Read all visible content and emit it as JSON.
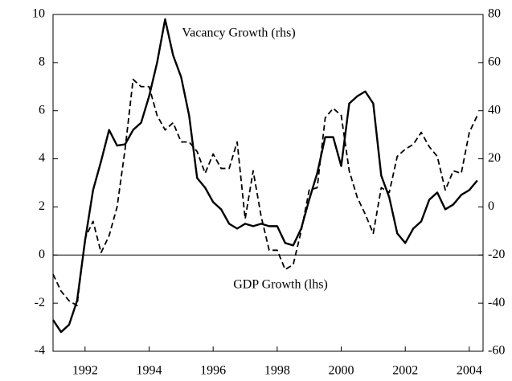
{
  "chart_data": {
    "type": "line",
    "annotations": [
      "Vacancy Growth (rhs)",
      "GDP Growth (lhs)"
    ],
    "x": [
      1991,
      1991.25,
      1991.5,
      1991.75,
      1992,
      1992.25,
      1992.5,
      1992.75,
      1993,
      1993.25,
      1993.5,
      1993.75,
      1994,
      1994.25,
      1994.5,
      1994.75,
      1995,
      1995.25,
      1995.5,
      1995.75,
      1996,
      1996.25,
      1996.5,
      1996.75,
      1997,
      1997.25,
      1997.5,
      1997.75,
      1998,
      1998.25,
      1998.5,
      1998.75,
      1999,
      1999.25,
      1999.5,
      1999.75,
      2000,
      2000.25,
      2000.5,
      2000.75,
      2001,
      2001.25,
      2001.5,
      2001.75,
      2002,
      2002.25,
      2002.5,
      2002.75,
      2003,
      2003.25,
      2003.5,
      2003.75,
      2004,
      2004.25
    ],
    "series": [
      {
        "name": "Vacancy Growth (rhs)",
        "color": "#000000",
        "dash": false,
        "axis": "y2",
        "values": [
          -47,
          -52,
          -49,
          -39,
          -14,
          7,
          19,
          32,
          25.5,
          26,
          32,
          35,
          46,
          60,
          78,
          63,
          54,
          38,
          12,
          8,
          2,
          -1,
          -7,
          -9,
          -7,
          -8,
          -7,
          -8,
          -8,
          -15,
          -16,
          -9,
          3,
          14,
          29,
          29,
          17,
          43,
          46,
          48,
          43,
          13,
          4,
          -11,
          -15,
          -9,
          -6,
          3,
          6,
          -1,
          1,
          5,
          7,
          11
        ]
      },
      {
        "name": "GDP Growth (lhs)",
        "color": "#000000",
        "dash": true,
        "axis": "y",
        "values": [
          -0.8,
          -1.5,
          -1.9,
          -2.1,
          0.7,
          1.4,
          0.1,
          0.8,
          2.0,
          4.4,
          7.3,
          7.0,
          7.0,
          5.8,
          5.2,
          5.5,
          4.7,
          4.7,
          4.3,
          3.4,
          4.2,
          3.6,
          3.6,
          4.7,
          1.5,
          3.5,
          1.6,
          0.2,
          0.2,
          -0.6,
          -0.4,
          1.0,
          2.7,
          2.8,
          5.7,
          6.1,
          5.8,
          3.5,
          2.4,
          1.7,
          0.9,
          2.8,
          2.6,
          4.1,
          4.4,
          4.6,
          5.1,
          4.5,
          4.1,
          2.7,
          3.5,
          3.4,
          5.1,
          5.8
        ]
      }
    ],
    "xlim": [
      1991,
      2004.43
    ],
    "xticks": [
      1992,
      1994,
      1996,
      1998,
      2000,
      2002,
      2004
    ],
    "ylim": [
      -4,
      10
    ],
    "yticks": [
      -4,
      -2,
      0,
      2,
      4,
      6,
      8,
      10
    ],
    "y2lim": [
      -60,
      80
    ],
    "y2ticks": [
      -60,
      -40,
      -20,
      0,
      20,
      40,
      60,
      80
    ],
    "zero_line": 0
  }
}
